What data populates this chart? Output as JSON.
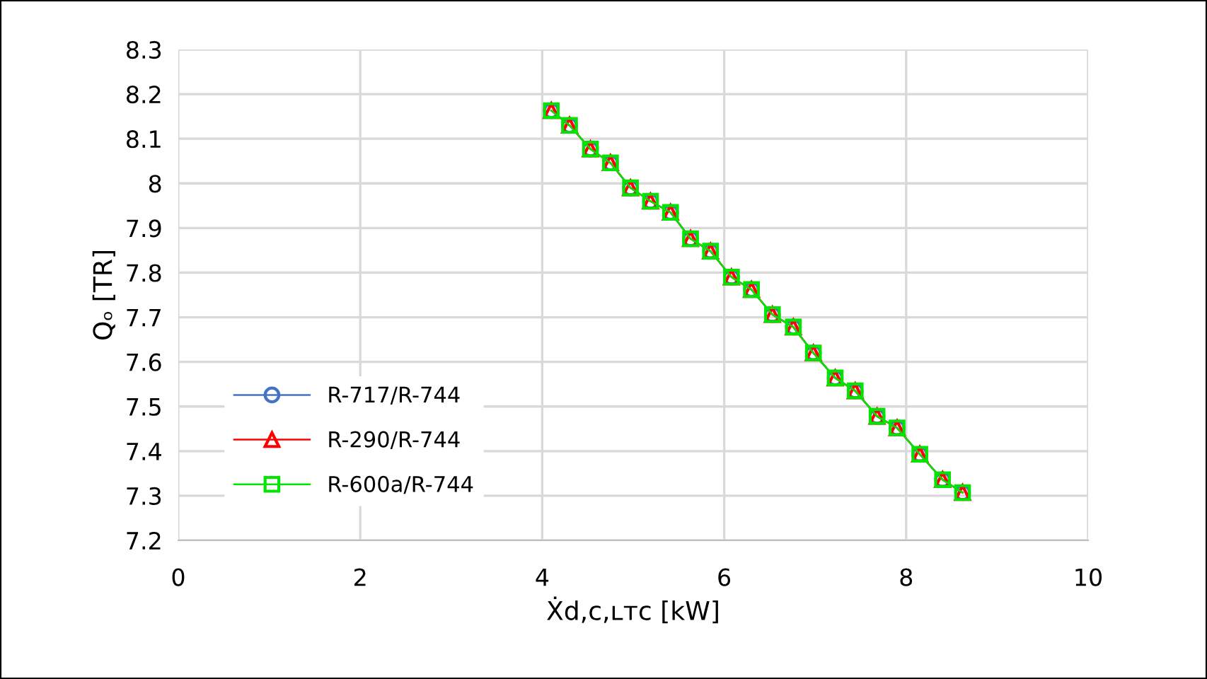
{
  "chart_data": {
    "type": "line",
    "xlabel": "Ẋd,c,ʟᴛᴄ [kW]",
    "ylabel": "Qₒ [TR]",
    "xlim": [
      0,
      10
    ],
    "xticks": [
      0,
      2,
      4,
      6,
      8,
      10
    ],
    "ylim": [
      7.2,
      8.3
    ],
    "yticks": [
      7.2,
      7.3,
      7.4,
      7.5,
      7.6,
      7.7,
      7.8,
      7.9,
      8,
      8.1,
      8.2,
      8.3
    ],
    "grid": true,
    "legend": "left",
    "x": [
      4.1,
      4.3,
      4.53,
      4.75,
      4.97,
      5.19,
      5.41,
      5.63,
      5.85,
      6.08,
      6.3,
      6.53,
      6.76,
      6.98,
      7.22,
      7.44,
      7.68,
      7.9,
      8.15,
      8.4,
      8.62
    ],
    "series": [
      {
        "name": "R-717/R-744",
        "color": "#4472c4",
        "marker": "circle",
        "values": [
          8.163,
          8.13,
          8.077,
          8.046,
          7.99,
          7.96,
          7.935,
          7.876,
          7.848,
          7.79,
          7.762,
          7.706,
          7.678,
          7.62,
          7.564,
          7.535,
          7.478,
          7.452,
          7.393,
          7.336,
          7.307
        ]
      },
      {
        "name": "R-290/R-744",
        "color": "#ff0000",
        "marker": "triangle",
        "values": [
          8.163,
          8.13,
          8.077,
          8.046,
          7.99,
          7.96,
          7.935,
          7.876,
          7.848,
          7.79,
          7.762,
          7.706,
          7.678,
          7.62,
          7.564,
          7.535,
          7.478,
          7.452,
          7.393,
          7.336,
          7.307
        ]
      },
      {
        "name": "R-600a/R-744",
        "color": "#00e600",
        "marker": "square",
        "values": [
          8.163,
          8.13,
          8.077,
          8.046,
          7.99,
          7.96,
          7.935,
          7.876,
          7.848,
          7.79,
          7.762,
          7.706,
          7.678,
          7.62,
          7.564,
          7.535,
          7.478,
          7.452,
          7.393,
          7.336,
          7.307
        ]
      }
    ]
  }
}
